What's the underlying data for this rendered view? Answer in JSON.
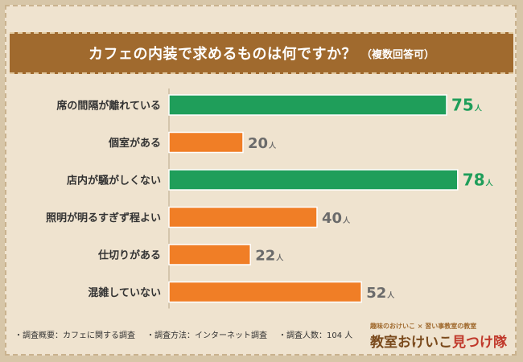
{
  "banner": {
    "title": "カフェの内装で求めるものは何ですか？",
    "subtitle": "（複数回答可）"
  },
  "chart_data": {
    "type": "bar",
    "orientation": "horizontal",
    "categories": [
      "席の間隔が離れている",
      "個室がある",
      "店内が騒がしくない",
      "照明が明るすぎず程よい",
      "仕切りがある",
      "混雑していない"
    ],
    "values": [
      75,
      20,
      78,
      40,
      22,
      52
    ],
    "value_suffix": "人",
    "highlight": [
      true,
      false,
      true,
      false,
      false,
      false
    ],
    "colors": {
      "highlight": "#1f9e5a",
      "normal": "#f07e26",
      "label_normal": "#6b6b6b"
    },
    "xlim": [
      0,
      80
    ],
    "grid": false,
    "legend": "none"
  },
  "footer": {
    "items": [
      "・調査概要：カフェに関する調査",
      "・調査方法：インターネット調査",
      "・調査人数：104 人"
    ]
  },
  "logo": {
    "tagline": "趣味のおけいこ × 習い事教室の教室",
    "name_part1": "教室おけいこ",
    "name_part2": "見つけ隊"
  }
}
